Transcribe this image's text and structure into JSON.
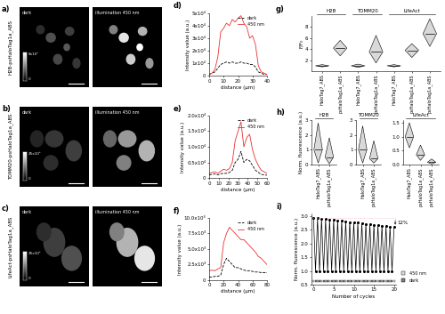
{
  "images": [
    {
      "panel_label": "a)",
      "name": "H2B-psHaloTag1a_ABS",
      "titles": [
        "dark",
        "illumination 450 nm"
      ],
      "colorbar_labels": [
        "8x10⁴",
        "0"
      ]
    },
    {
      "panel_label": "b)",
      "name": "TOMM20-psHaloTag1a_ABS",
      "titles": [
        "dark",
        "illumination 450 nm"
      ],
      "colorbar_labels": [
        "25x10³",
        "0"
      ]
    },
    {
      "panel_label": "c)",
      "name": "LifeAct-psHaloTag1a_ABS",
      "titles": [
        "dark",
        "illumination 450 nm"
      ],
      "colorbar_labels": [
        "25x10³",
        "0"
      ]
    }
  ],
  "chart_data": [
    {
      "panel_label": "d)",
      "type": "line",
      "x_label": "distance (µm)",
      "y_label": "Intensity value (a.u.)",
      "x": [
        0,
        2,
        4,
        6,
        8,
        10,
        12,
        14,
        16,
        18,
        20,
        22,
        24,
        26,
        28,
        30,
        32,
        34,
        36,
        38,
        40
      ],
      "series": [
        {
          "name": "dark",
          "color": "#000000",
          "line_style": "dashed",
          "values": [
            1000,
            2000,
            3000,
            6000,
            9000,
            10000,
            11000,
            10000,
            11000,
            10000,
            10000,
            11000,
            10000,
            10000,
            9000,
            9000,
            7000,
            3000,
            2000,
            1000,
            1000
          ]
        },
        {
          "name": "450 nm",
          "color": "#e8312f",
          "line_style": "solid",
          "values": [
            1000,
            2000,
            5000,
            15000,
            35000,
            38000,
            42000,
            40000,
            45000,
            43000,
            46000,
            48000,
            42000,
            39000,
            30000,
            32000,
            25000,
            8000,
            3000,
            2000,
            1000
          ]
        }
      ],
      "xlim": [
        0,
        40
      ],
      "xticks": [
        0,
        10,
        20,
        30,
        40
      ],
      "ylim": [
        0,
        50000
      ],
      "yticks": [
        0,
        {
          "value": 10000,
          "label": "1x10⁴"
        },
        {
          "value": 20000,
          "label": "2x10⁴"
        },
        {
          "value": 30000,
          "label": "3x10⁴"
        },
        {
          "value": 40000,
          "label": "4x10⁴"
        },
        {
          "value": 50000,
          "label": "5x10⁴"
        }
      ],
      "legend": "upper right"
    },
    {
      "panel_label": "e)",
      "type": "line",
      "x_label": "distance (µm)",
      "y_label": "Intensity value (a.u.)",
      "x": [
        0,
        3,
        6,
        9,
        12,
        15,
        18,
        21,
        24,
        27,
        30,
        33,
        36,
        39,
        42,
        45,
        48,
        51,
        54,
        57,
        60
      ],
      "series": [
        {
          "name": "dark",
          "color": "#000000",
          "line_style": "dashed",
          "values": [
            1000,
            1200,
            1300,
            1000,
            1400,
            1500,
            1500,
            1800,
            2500,
            5000,
            6000,
            8500,
            5000,
            6000,
            5500,
            4000,
            2500,
            1800,
            1200,
            1000,
            900
          ]
        },
        {
          "name": "450 nm",
          "color": "#e8312f",
          "line_style": "solid",
          "values": [
            1500,
            1800,
            2000,
            1500,
            2200,
            2800,
            2500,
            3000,
            5000,
            12000,
            15000,
            18000,
            10000,
            13000,
            14000,
            9000,
            6000,
            4000,
            2500,
            2000,
            1500
          ]
        }
      ],
      "xlim": [
        0,
        60
      ],
      "xticks": [
        0,
        10,
        20,
        30,
        40,
        50,
        60
      ],
      "ylim": [
        0,
        20000
      ],
      "yticks": [
        0,
        {
          "value": 5000,
          "label": "0.5x10⁴"
        },
        {
          "value": 10000,
          "label": "1.0x10⁴"
        },
        {
          "value": 15000,
          "label": "1.5x10⁴"
        },
        {
          "value": 20000,
          "label": "2.0x10⁴"
        }
      ],
      "legend": "upper right"
    },
    {
      "panel_label": "f)",
      "type": "line",
      "x_label": "distance (µm)",
      "y_label": "Intensity value (a.u.)",
      "x": [
        0,
        4,
        8,
        12,
        16,
        20,
        24,
        28,
        32,
        36,
        40,
        44,
        48,
        52,
        56,
        60,
        64,
        68,
        72,
        76,
        80
      ],
      "series": [
        {
          "name": "dark",
          "color": "#000000",
          "line_style": "dashed",
          "values": [
            500,
            500,
            600,
            600,
            800,
            2500,
            3500,
            3000,
            2500,
            2000,
            2000,
            1800,
            1600,
            1500,
            1500,
            1400,
            1300,
            1300,
            1200,
            1200,
            1200
          ]
        },
        {
          "name": "450 nm",
          "color": "#e8312f",
          "line_style": "solid",
          "values": [
            1500,
            1600,
            1500,
            1800,
            2000,
            6000,
            7500,
            8500,
            8000,
            7500,
            7000,
            6500,
            6500,
            6000,
            5500,
            5000,
            4500,
            3800,
            3500,
            3000,
            2500
          ]
        }
      ],
      "xlim": [
        0,
        80
      ],
      "xticks": [
        0,
        20,
        40,
        60,
        80
      ],
      "ylim": [
        0,
        10000
      ],
      "yticks": [
        0,
        {
          "value": 2500,
          "label": "2.5x10³"
        },
        {
          "value": 5000,
          "label": "5.0x10³"
        },
        {
          "value": 7500,
          "label": "7.5x10³"
        },
        {
          "value": 10000,
          "label": "10.0x10³"
        }
      ],
      "legend": "upper right"
    },
    {
      "panel_label": "g)",
      "type": "violin",
      "y_label": "F/F₀",
      "color": "#d9d9d9",
      "groups": [
        {
          "name": "H2B",
          "categories": [
            "HaloTag7_ABS",
            "psHaloTag1a_ABS"
          ],
          "min": [
            0.8,
            2.8
          ],
          "median": [
            1.0,
            4.2
          ],
          "max": [
            1.2,
            5.6
          ]
        },
        {
          "name": "TOMM20",
          "categories": [
            "HaloTag7_ABS",
            "psHaloTag1a_ABS"
          ],
          "min": [
            0.7,
            1.5
          ],
          "median": [
            1.0,
            3.5
          ],
          "max": [
            1.3,
            6.5
          ]
        },
        {
          "name": "LifeAct",
          "categories": [
            "HaloTag7_ABS",
            "psHaloTag1a_ABS",
            "psHaloTag1a_ABS"
          ],
          "min": [
            0.8,
            2.5,
            4.5
          ],
          "median": [
            1.0,
            3.8,
            6.8
          ],
          "max": [
            1.2,
            5.0,
            9.5
          ]
        }
      ],
      "ylim": [
        0,
        10
      ],
      "yticks": [
        2,
        4,
        6,
        8
      ]
    },
    {
      "panel_label": "h)",
      "type": "violin",
      "y_label": "Norm. fluorescence (a.u.)",
      "color": "#d9d9d9",
      "groups": [
        {
          "name": "H2B",
          "categories": [
            "HaloTag7_ABS",
            "psHaloTag1a_ABS"
          ],
          "min": [
            0.1,
            0.05
          ],
          "median": [
            1.0,
            0.5
          ],
          "max": [
            2.8,
            1.8
          ]
        }
      ],
      "ylim": [
        0,
        3
      ],
      "yticks": [
        0,
        1,
        2,
        3
      ]
    },
    {
      "type": "violin",
      "color": "#d9d9d9",
      "groups": [
        {
          "name": "TOMM20",
          "categories": [
            "HaloTag7_ABS",
            "psHaloTag1a_ABS"
          ],
          "min": [
            0.1,
            0.1
          ],
          "median": [
            1.0,
            0.4
          ],
          "max": [
            2.6,
            1.6
          ]
        }
      ],
      "ylim": [
        0,
        3
      ],
      "yticks": [
        0,
        1,
        2,
        3
      ]
    },
    {
      "type": "violin",
      "color": "#d9d9d9",
      "groups": [
        {
          "name": "LifeAct",
          "categories": [
            "HaloTag7_ABS",
            "psHaloTag1a_ABS",
            "psHaloTag1a_ABS"
          ],
          "min": [
            0.6,
            0.15,
            0.02
          ],
          "median": [
            1.0,
            0.35,
            0.08
          ],
          "max": [
            1.5,
            0.7,
            0.2
          ]
        }
      ],
      "ylim": [
        0,
        1.6
      ],
      "yticks": [
        0.0,
        0.5,
        1.0,
        1.5
      ]
    },
    {
      "panel_label": "i)",
      "type": "cycles",
      "x_label": "Number of cycles",
      "y_label": "Norm. fluorescence (a.u.)",
      "color": "#000000",
      "marker": "o",
      "x": [
        0,
        0.5,
        1,
        1.5,
        2,
        2.5,
        3,
        3.5,
        4,
        4.5,
        5,
        5.5,
        6,
        6.5,
        7,
        7.5,
        8,
        8.5,
        9,
        9.5,
        10,
        10.5,
        11,
        11.5,
        12,
        12.5,
        13,
        13.5,
        14,
        14.5,
        15,
        15.5,
        16,
        16.5,
        17,
        17.5,
        18,
        18.5,
        19,
        19.5,
        20
      ],
      "values": [
        2.95,
        1.0,
        2.93,
        0.98,
        2.92,
        1.0,
        2.9,
        0.99,
        2.88,
        1.0,
        2.86,
        0.98,
        2.85,
        0.99,
        2.83,
        1.0,
        2.81,
        0.98,
        2.79,
        0.99,
        2.77,
        1.0,
        2.76,
        0.98,
        2.74,
        0.99,
        2.72,
        1.0,
        2.71,
        0.98,
        2.69,
        0.99,
        2.67,
        1.0,
        2.66,
        0.98,
        2.64,
        0.99,
        2.62,
        1.0,
        2.6
      ],
      "series": [
        {
          "name": "450 nm",
          "color": "#dcdcdc",
          "x": [
            0,
            1,
            2,
            3,
            4,
            5,
            6,
            7,
            8,
            9,
            10,
            11,
            12,
            13,
            14,
            15,
            16,
            17,
            18,
            19,
            20
          ]
        },
        {
          "name": "dark",
          "color": "#7f7f7f",
          "x": [
            0.5,
            1.5,
            2.5,
            3.5,
            4.5,
            5.5,
            6.5,
            7.5,
            8.5,
            9.5,
            10.5,
            11.5,
            12.5,
            13.5,
            14.5,
            15.5,
            16.5,
            17.5,
            18.5,
            19.5
          ]
        }
      ],
      "annotations": [
        {
          "text": "12%"
        }
      ],
      "xlim": [
        -0.5,
        20.5
      ],
      "xticks": [
        0,
        5,
        10,
        15,
        20
      ],
      "ylim": [
        0.5,
        3.1
      ],
      "yticks": [
        0.5,
        1.0,
        1.5,
        2.0,
        2.5,
        3.0
      ],
      "legend": "lower right"
    }
  ]
}
